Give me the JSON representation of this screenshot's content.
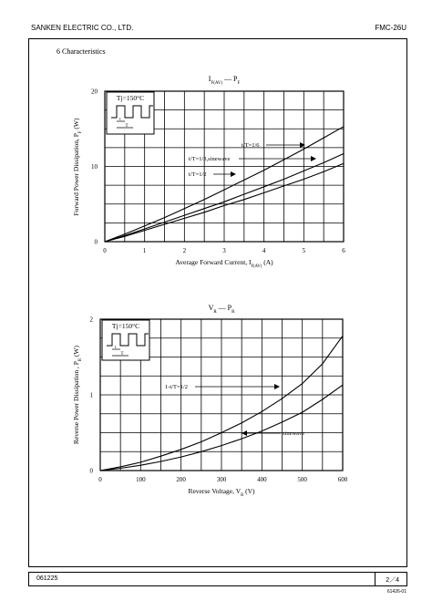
{
  "header": {
    "company": "SANKEN ELECTRIC CO., LTD.",
    "part_number": "FMC-26U"
  },
  "section_title": "6  Characteristics",
  "footer": {
    "date_code": "061225",
    "page": "2／4",
    "doc_number": "61426-01"
  },
  "chart_data": [
    {
      "type": "line",
      "title": "I F(AV) — P F",
      "title_parts": {
        "main": "I",
        "sub": "F(AV)",
        "dash": "—",
        "main2": "P",
        "sub2": "F"
      },
      "xlabel": "Average Forward Current, I F(AV) (A)",
      "xlabel_parts": {
        "pre": "Average Forward Current, I",
        "sub": "F(AV)",
        "post": " (A)"
      },
      "ylabel": "Forward Power Dissipation, P F (W)",
      "ylabel_parts": {
        "pre": "Forward Power Dissipation, P",
        "sub": "F",
        "post": " (W)"
      },
      "xlim": [
        0,
        6
      ],
      "ylim": [
        0,
        20
      ],
      "x_ticks": [
        "0",
        "1",
        "2",
        "3",
        "4",
        "5",
        "6"
      ],
      "y_ticks": [
        "0",
        "10",
        "20"
      ],
      "y_tick_values": [
        0,
        10,
        20
      ],
      "grid": true,
      "inset_label": "Tj=150°C",
      "inset_marks": [
        "t",
        "T"
      ],
      "series": [
        {
          "name": "t/T=1/6",
          "x": [
            0,
            0.5,
            1,
            1.5,
            2,
            2.5,
            3,
            3.5,
            4,
            4.5,
            5,
            5.5,
            6
          ],
          "y": [
            0,
            1.0,
            2.1,
            3.2,
            4.4,
            5.6,
            6.9,
            8.2,
            9.5,
            10.9,
            12.3,
            13.8,
            15.3
          ]
        },
        {
          "name": "t/T=1/3,sinewave",
          "x": [
            0,
            0.5,
            1,
            1.5,
            2,
            2.5,
            3,
            3.5,
            4,
            4.5,
            5,
            5.5,
            6
          ],
          "y": [
            0,
            0.8,
            1.7,
            2.6,
            3.5,
            4.4,
            5.3,
            6.3,
            7.3,
            8.3,
            9.4,
            10.5,
            11.7
          ]
        },
        {
          "name": "t/T=1/2",
          "x": [
            0,
            0.5,
            1,
            1.5,
            2,
            2.5,
            3,
            3.5,
            4,
            4.5,
            5,
            5.5,
            6
          ],
          "y": [
            0,
            0.7,
            1.5,
            2.3,
            3.1,
            3.9,
            4.8,
            5.6,
            6.5,
            7.4,
            8.3,
            9.3,
            10.4
          ]
        }
      ]
    },
    {
      "type": "line",
      "title": "V R — P R",
      "title_parts": {
        "main": "V",
        "sub": "R",
        "dash": "—",
        "main2": "P",
        "sub2": "R"
      },
      "xlabel": "Reverse Voltage, V R (V)",
      "xlabel_parts": {
        "pre": "Reverse Voltage, V",
        "sub": "R",
        "post": " (V)"
      },
      "ylabel": "Reverse Power Dissipation , P R (W)",
      "ylabel_parts": {
        "pre": "Reverse Power Dissipation , P",
        "sub": "R",
        "post": " (W)"
      },
      "xlim": [
        0,
        600
      ],
      "ylim": [
        0,
        2
      ],
      "x_ticks": [
        "0",
        "100",
        "200",
        "300",
        "400",
        "500",
        "600"
      ],
      "y_ticks": [
        "0",
        "1",
        "2"
      ],
      "y_tick_values": [
        0,
        1,
        2
      ],
      "grid": true,
      "inset_label": "Tj=150°C",
      "inset_marks": [
        "t",
        "T"
      ],
      "series": [
        {
          "name": "1-t/T=1/2",
          "x": [
            0,
            50,
            100,
            150,
            200,
            250,
            300,
            350,
            400,
            450,
            500,
            550,
            600
          ],
          "y": [
            0,
            0.05,
            0.11,
            0.19,
            0.28,
            0.38,
            0.5,
            0.63,
            0.78,
            0.95,
            1.15,
            1.41,
            1.78
          ]
        },
        {
          "name": "sinewave",
          "x": [
            0,
            50,
            100,
            150,
            200,
            250,
            300,
            350,
            400,
            450,
            500,
            550,
            600
          ],
          "y": [
            0,
            0.03,
            0.07,
            0.12,
            0.18,
            0.25,
            0.33,
            0.42,
            0.52,
            0.64,
            0.77,
            0.94,
            1.13
          ]
        }
      ]
    }
  ]
}
